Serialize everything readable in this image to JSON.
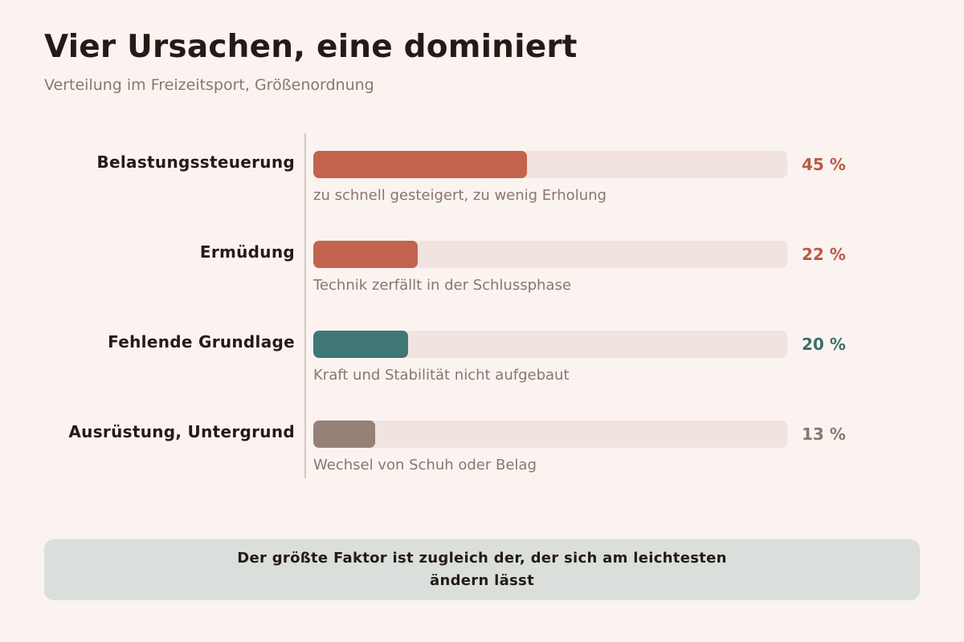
{
  "title": "Vier Ursachen, eine dominiert",
  "subtitle": "Verteilung im Freizeitsport, Größenordnung",
  "chart_data": {
    "type": "bar",
    "orientation": "horizontal",
    "unit": "%",
    "xlim": [
      0,
      100
    ],
    "categories": [
      "Belastungssteuerung",
      "Ermüdung",
      "Fehlende Grundlage",
      "Ausrüstung, Untergrund"
    ],
    "values": [
      45,
      22,
      20,
      13
    ],
    "value_labels": [
      "45 %",
      "22 %",
      "20 %",
      "13 %"
    ],
    "annotations": [
      "zu schnell gesteigert, zu wenig Erholung",
      "Technik zerfällt in der Schlussphase",
      "Kraft und Stabilität nicht aufgebaut",
      "Wechsel von Schuh oder Belag"
    ],
    "colors": [
      "#c4634e",
      "#c4634e",
      "#3f7774",
      "#978077"
    ],
    "label_colors": [
      "#b85a45",
      "#b85a45",
      "#3a6e6b",
      "#8a766e"
    ],
    "grid": false,
    "legend": "none"
  },
  "callout": "Der größte Faktor ist zugleich der, der sich am leichtesten ändern lässt"
}
